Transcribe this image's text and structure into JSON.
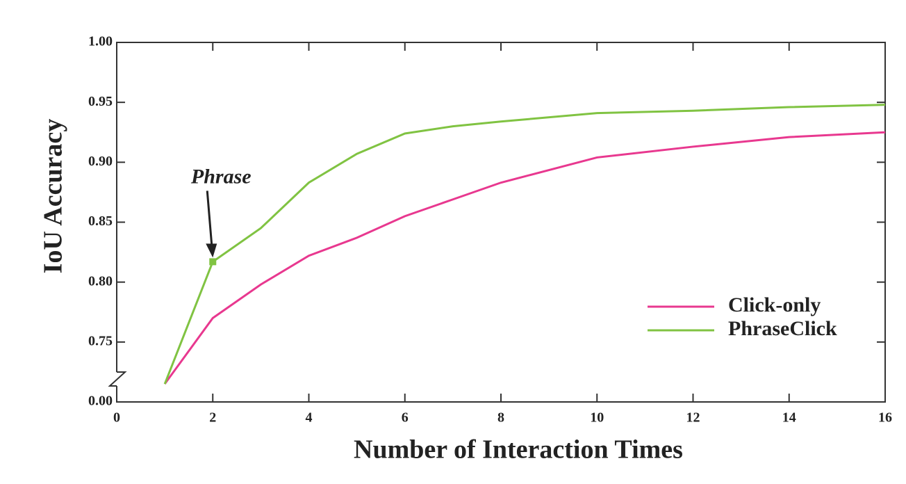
{
  "chart_data": {
    "type": "line",
    "x_label": "Number of Interaction Times",
    "y_label": "IoU Accuracy",
    "x": [
      1,
      2,
      3,
      4,
      5,
      6,
      7,
      8,
      10,
      12,
      14,
      16
    ],
    "series": [
      {
        "name": "Click-only",
        "color": "#e8388f",
        "values": [
          0.715,
          0.77,
          0.798,
          0.822,
          0.837,
          0.855,
          0.869,
          0.883,
          0.904,
          0.913,
          0.921,
          0.925
        ]
      },
      {
        "name": "PhraseClick",
        "color": "#80c342",
        "values": [
          0.715,
          0.817,
          0.845,
          0.883,
          0.907,
          0.924,
          0.93,
          0.934,
          0.941,
          0.943,
          0.946,
          0.948
        ]
      }
    ],
    "annotation": {
      "text": "Phrase",
      "series": 1,
      "index": 1
    },
    "xlim": [
      0,
      16
    ],
    "xticks": [
      0,
      2,
      4,
      6,
      8,
      10,
      12,
      14,
      16
    ],
    "ylim": [
      0,
      1
    ],
    "ybreak": [
      0,
      0.7
    ],
    "yticks": [
      {
        "value": 0,
        "label": "0.00"
      },
      {
        "value": 0.75,
        "label": "0.75"
      },
      {
        "value": 0.8,
        "label": "0.80"
      },
      {
        "value": 0.85,
        "label": "0.85"
      },
      {
        "value": 0.9,
        "label": "0.90"
      },
      {
        "value": 0.95,
        "label": "0.95"
      },
      {
        "value": 1,
        "label": "1.00"
      }
    ],
    "legend": "lower right"
  }
}
